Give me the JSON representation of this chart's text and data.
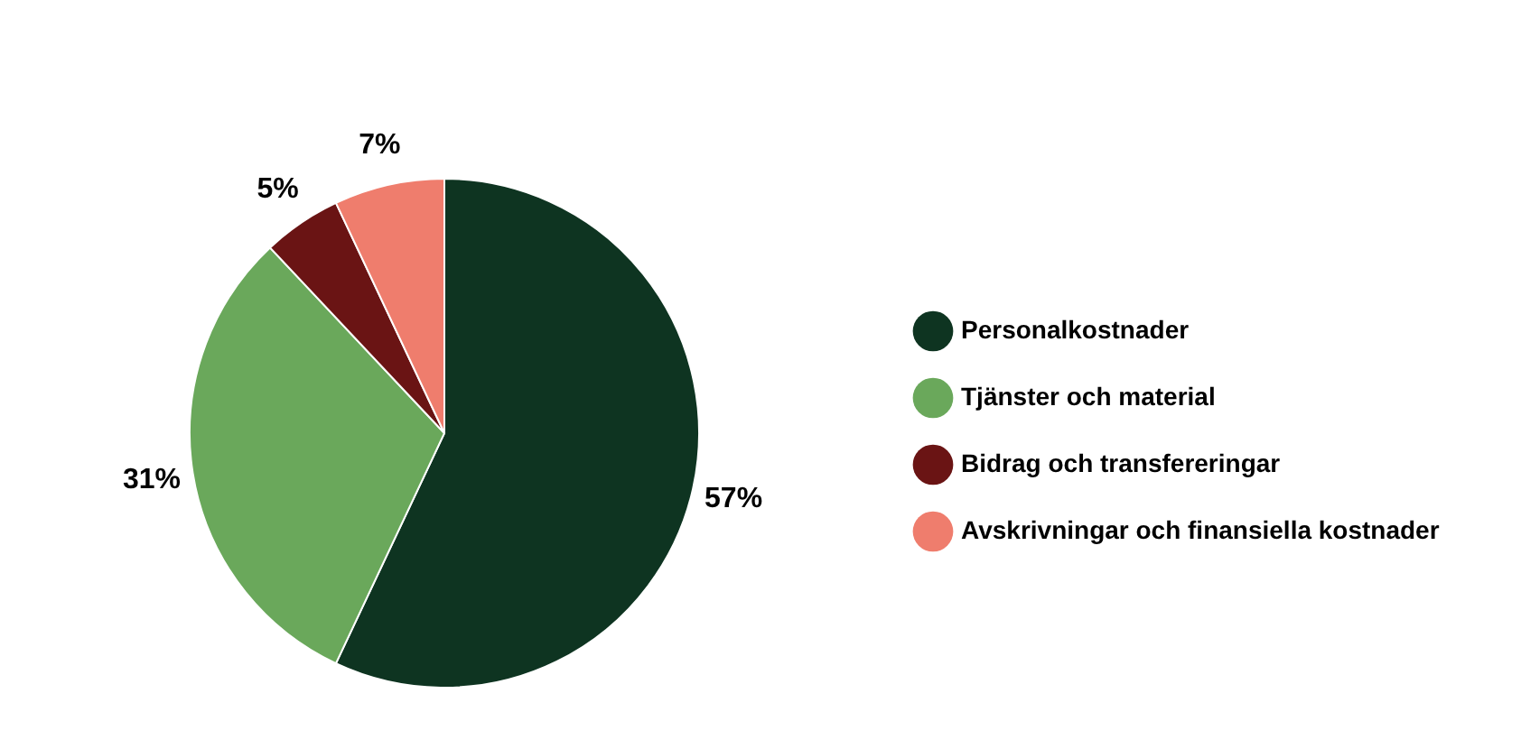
{
  "chart_data": {
    "type": "pie",
    "categories": [
      "Personalkostnader",
      "Tjänster och material",
      "Bidrag och transfereringar",
      "Avskrivningar och finansiella kostnader"
    ],
    "values": [
      57,
      31,
      5,
      7
    ],
    "colors": [
      "#0e3421",
      "#6aa85b",
      "#6a1414",
      "#ef7d6d"
    ],
    "value_labels": [
      "57%",
      "31%",
      "5%",
      "7%"
    ],
    "legend": "right"
  }
}
